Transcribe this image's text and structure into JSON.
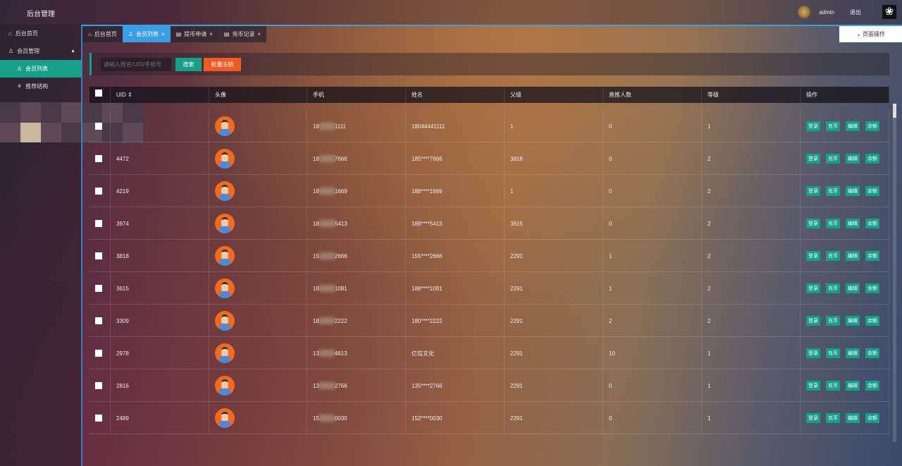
{
  "header": {
    "title": "后台管理",
    "user": "admin",
    "logout": "退出"
  },
  "sidebar": {
    "items": [
      {
        "label": "后台首页",
        "icon": "home-icon"
      },
      {
        "label": "会员管理",
        "icon": "user-icon"
      },
      {
        "label": "会员列表",
        "icon": "user-icon",
        "active": true
      },
      {
        "label": "推荐结构",
        "icon": "tree-icon"
      }
    ]
  },
  "tabs": [
    {
      "label": "后台首页"
    },
    {
      "label": "会员列表",
      "active": true
    },
    {
      "label": "提币申请"
    },
    {
      "label": "充币记录"
    }
  ],
  "page_ops": "页面操作",
  "toolbar": {
    "search_placeholder": "请输入姓名/UID/手机号",
    "search": "搜索",
    "batch_freeze": "批量冻结"
  },
  "colors": {
    "accent": "#16a08a",
    "danger": "#f25a22",
    "tab_active": "#3a9ee6"
  },
  "table": {
    "columns": [
      "UID",
      "头像",
      "手机",
      "姓名",
      "父级",
      "直推人数",
      "等级",
      "操作"
    ],
    "actions": [
      "登录",
      "充币",
      "编辑",
      "余额"
    ],
    "rows": [
      {
        "uid": "",
        "phone_pre": "18",
        "phone_post": "1111",
        "name": "18044441111",
        "parent": "1",
        "direct": "0",
        "level": "1"
      },
      {
        "uid": "4472",
        "phone_pre": "18",
        "phone_post": "7666",
        "name": "185****7666",
        "parent": "3818",
        "direct": "0",
        "level": "2"
      },
      {
        "uid": "4219",
        "phone_pre": "18",
        "phone_post": "1669",
        "name": "188****1669",
        "parent": "1",
        "direct": "0",
        "level": "2"
      },
      {
        "uid": "3974",
        "phone_pre": "18",
        "phone_post": "5413",
        "name": "188****5413",
        "parent": "3615",
        "direct": "0",
        "level": "2"
      },
      {
        "uid": "3818",
        "phone_pre": "15",
        "phone_post": "2666",
        "name": "155****2666",
        "parent": "2291",
        "direct": "1",
        "level": "2"
      },
      {
        "uid": "3615",
        "phone_pre": "18",
        "phone_post": "1081",
        "name": "188****1081",
        "parent": "2291",
        "direct": "1",
        "level": "2"
      },
      {
        "uid": "3309",
        "phone_pre": "18",
        "phone_post": "2222",
        "name": "180****2222",
        "parent": "2291",
        "direct": "2",
        "level": "2"
      },
      {
        "uid": "2978",
        "phone_pre": "13",
        "phone_post": "4613",
        "name": "亿信文化",
        "parent": "2291",
        "direct": "10",
        "level": "1"
      },
      {
        "uid": "2816",
        "phone_pre": "13",
        "phone_post": "2766",
        "name": "135****2766",
        "parent": "2291",
        "direct": "0",
        "level": "1"
      },
      {
        "uid": "2489",
        "phone_pre": "15",
        "phone_post": "0030",
        "name": "152****0030",
        "parent": "2291",
        "direct": "0",
        "level": "1"
      }
    ]
  }
}
